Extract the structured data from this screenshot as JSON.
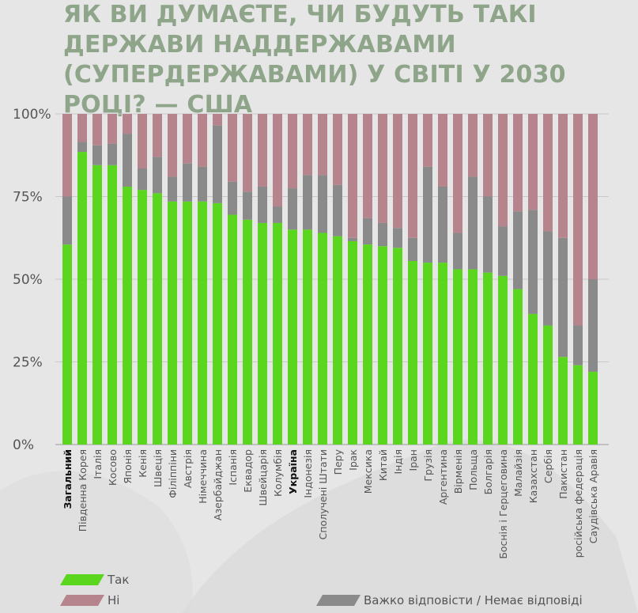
{
  "title": "ЯК ВИ ДУМАЄТЕ, ЧИ БУДУТЬ ТАКІ ДЕРЖАВИ НАДДЕРЖАВАМИ (СУПЕРДЕРЖАВАМИ) У СВІТІ У 2030 РОЦІ? — США",
  "colors": {
    "yes": "#5bd61f",
    "no": "#b5848c",
    "dont_know": "#8a8a8a",
    "title": "#8ea58a"
  },
  "legend": {
    "yes": "Так",
    "no": "Ні",
    "dont_know": "Важко відповісти / Немає відповіді"
  },
  "chart_data": {
    "type": "bar",
    "stacked": true,
    "categories": [
      "Загальний",
      "Південна Корея",
      "Італія",
      "Косово",
      "Японія",
      "Кенія",
      "Швеція",
      "Філіппіни",
      "Австрія",
      "Німеччина",
      "Азербайджан",
      "Іспанія",
      "Еквадор",
      "Швейцарія",
      "Колумбія",
      "Україна",
      "Індонезія",
      "Сполучені Штати",
      "Перу",
      "Ірак",
      "Мексика",
      "Китай",
      "Індія",
      "Іран",
      "Грузія",
      "Аргентина",
      "Вірменія",
      "Польща",
      "Болгарія",
      "Боснія і Герцеговина",
      "Малайзія",
      "Казахстан",
      "Сербія",
      "Пакистан",
      "російська федерація",
      "Саудівська Аравія"
    ],
    "bold_categories": [
      "Загальний",
      "Україна"
    ],
    "series": [
      {
        "name": "Так",
        "key": "yes",
        "values": [
          60.5,
          88.5,
          84.5,
          84.5,
          78,
          77,
          76,
          73.5,
          73.5,
          73.5,
          73,
          69.5,
          68,
          67,
          67,
          65,
          65,
          64,
          63,
          61.5,
          60.5,
          60,
          59.5,
          55.5,
          55,
          55,
          53,
          53,
          52,
          51,
          47,
          39.5,
          36,
          26.5,
          24,
          22
        ]
      },
      {
        "name": "Важко відповісти / Немає відповіді",
        "key": "dont_know",
        "values": [
          14.5,
          3,
          6,
          6.5,
          16,
          6.5,
          11,
          7.5,
          11.5,
          10.5,
          23.5,
          10,
          8.5,
          11,
          5,
          12.5,
          16.5,
          17.5,
          15.5,
          1,
          8,
          7,
          6,
          7,
          29,
          23,
          11,
          28,
          23,
          15,
          23.5,
          31.5,
          28.5,
          36,
          12,
          28
        ]
      },
      {
        "name": "Ні",
        "key": "no",
        "values": [
          25,
          8.5,
          9.5,
          9,
          6,
          16.5,
          13,
          19,
          15,
          16,
          3.5,
          20.5,
          23.5,
          22,
          28,
          22.5,
          18.5,
          18.5,
          21.5,
          37.5,
          31.5,
          33,
          34.5,
          37.5,
          16,
          22,
          36,
          19,
          25,
          34,
          29.5,
          29,
          35.5,
          37.5,
          64,
          50
        ]
      }
    ],
    "y_ticks": [
      "0%",
      "25%",
      "50%",
      "75%",
      "100%"
    ],
    "ylim": [
      0,
      100
    ],
    "grid": true
  }
}
